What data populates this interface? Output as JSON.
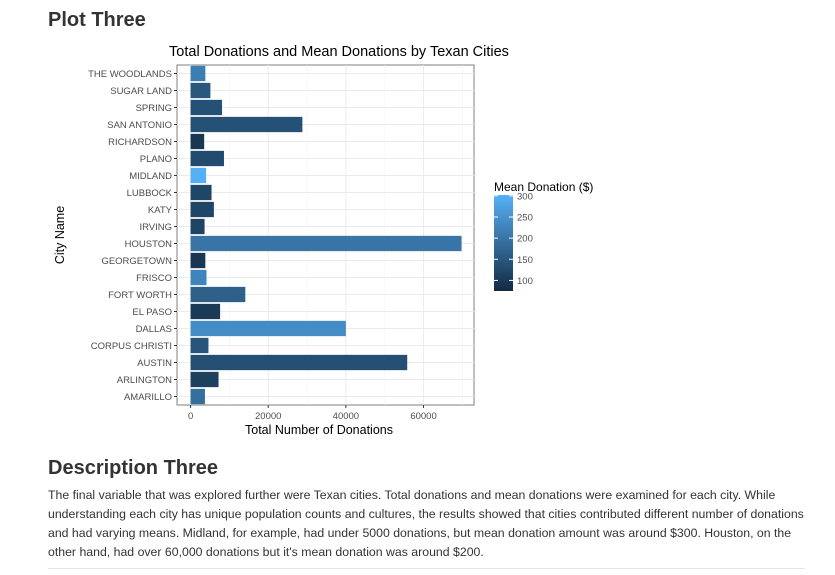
{
  "plot_heading": "Plot Three",
  "description_heading": "Description Three",
  "description_text": "The final variable that was explored further were Texan cities. Total donations and mean donations were examined for each city. While understanding each city has unique population counts and cultures, the results showed that cities contributed different number of donations and had varying means. Midland, for example, had under 5000 donations, but mean donation amount was around $300. Houston, on the other hand, had over 60,000 donations but it's mean donation was around $200.",
  "chart_data": {
    "type": "bar",
    "orientation": "horizontal",
    "title": "Total Donations and Mean Donations by Texan Cities",
    "xlabel": "Total Number of Donations",
    "ylabel": "City Name",
    "xlim": [
      -3500,
      73000
    ],
    "xticks": [
      0,
      20000,
      40000,
      60000
    ],
    "xtick_labels": [
      "0",
      "20000",
      "40000",
      "60000"
    ],
    "grid": true,
    "legend": {
      "title": "Mean Donation ($)",
      "placement": "right",
      "min": 75,
      "max": 302,
      "ticks": [
        100,
        150,
        200,
        250,
        300
      ],
      "low_color": "#132b43",
      "high_color": "#56b1f7"
    },
    "categories": [
      "AMARILLO",
      "ARLINGTON",
      "AUSTIN",
      "CORPUS CHRISTI",
      "DALLAS",
      "EL PASO",
      "FORT WORTH",
      "FRISCO",
      "GEORGETOWN",
      "HOUSTON",
      "IRVING",
      "KATY",
      "LUBBOCK",
      "MIDLAND",
      "PLANO",
      "RICHARDSON",
      "SAN ANTONIO",
      "SPRING",
      "SUGAR LAND",
      "THE WOODLANDS"
    ],
    "values": [
      3700,
      7200,
      55800,
      4600,
      40000,
      7600,
      14100,
      4100,
      3800,
      69800,
      3600,
      6000,
      5400,
      4000,
      8600,
      3500,
      28800,
      8100,
      5100,
      3800
    ],
    "mean_donation": [
      190,
      110,
      135,
      145,
      240,
      100,
      165,
      225,
      95,
      200,
      115,
      120,
      120,
      300,
      130,
      95,
      140,
      140,
      150,
      215
    ]
  }
}
